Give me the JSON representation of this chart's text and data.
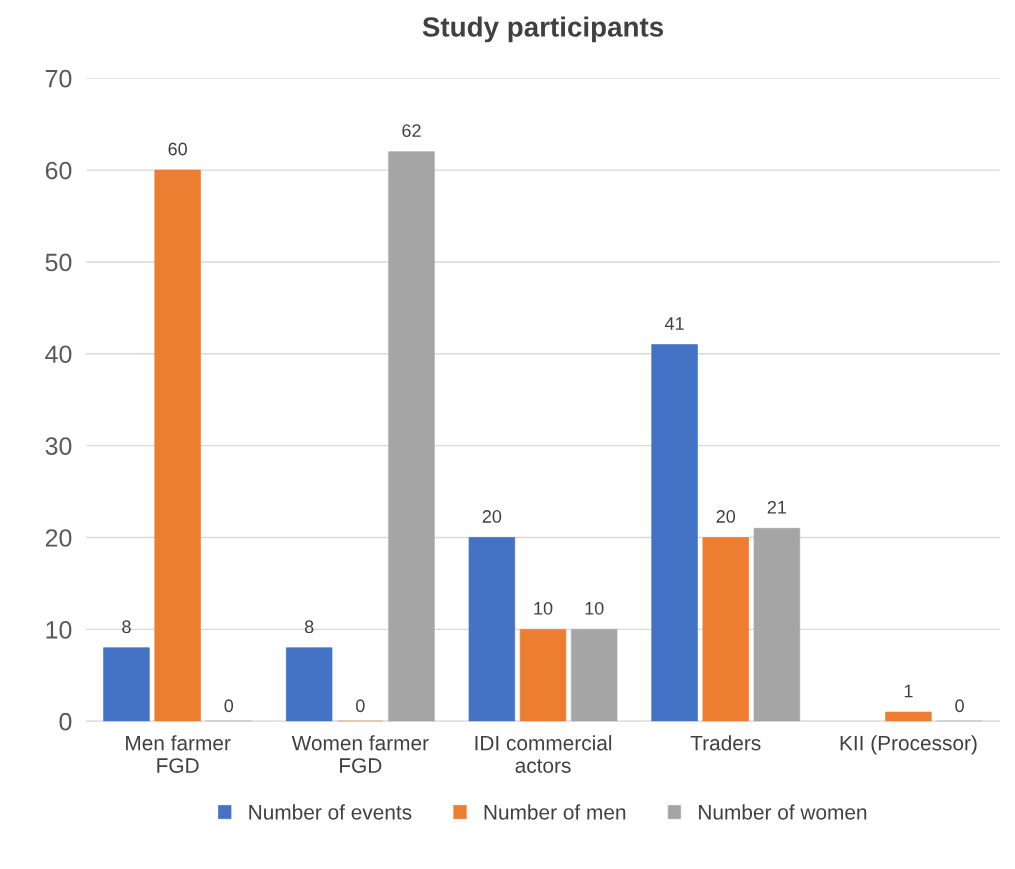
{
  "chart_data": {
    "type": "bar",
    "title": "Study participants",
    "categories": [
      "Men farmer\nFGD",
      "Women farmer\nFGD",
      "IDI commercial\nactors",
      "Traders",
      "KII (Processor)"
    ],
    "series": [
      {
        "name": "Number of events",
        "color": "#4472c4",
        "values": [
          8,
          8,
          20,
          41,
          null
        ]
      },
      {
        "name": "Number of men",
        "color": "#ed7d31",
        "values": [
          60,
          0,
          10,
          20,
          1
        ]
      },
      {
        "name": "Number of women",
        "color": "#a5a5a5",
        "values": [
          0,
          62,
          10,
          21,
          0
        ]
      }
    ],
    "ylim": [
      0,
      70
    ],
    "yticks": [
      0,
      10,
      20,
      30,
      40,
      50,
      60,
      70
    ],
    "grid": "y",
    "legend": "bottom",
    "data_labels": true
  }
}
